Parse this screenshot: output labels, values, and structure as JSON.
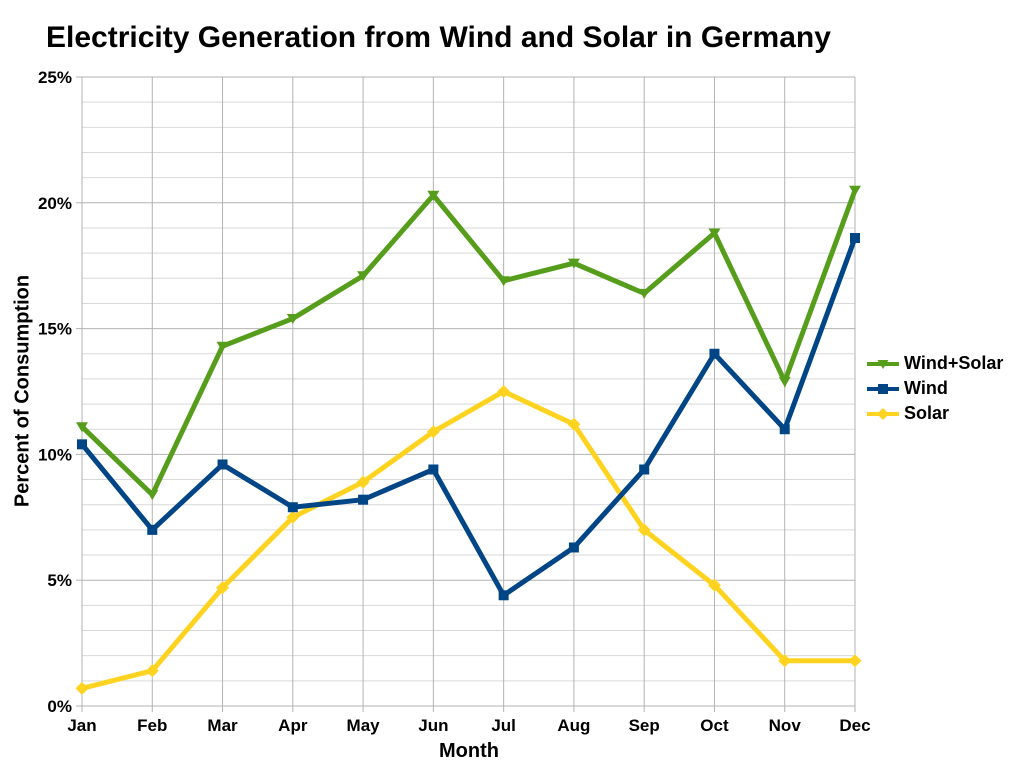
{
  "title": "Electricity Generation from Wind and Solar in Germany",
  "chart_data": {
    "type": "line",
    "title": "Electricity Generation from Wind and Solar in Germany",
    "xlabel": "Month",
    "ylabel": "Percent of Consumption",
    "categories": [
      "Jan",
      "Feb",
      "Mar",
      "Apr",
      "May",
      "Jun",
      "Jul",
      "Aug",
      "Sep",
      "Oct",
      "Nov",
      "Dec"
    ],
    "y_tick_labels": [
      "0%",
      "5%",
      "10%",
      "15%",
      "20%",
      "25%"
    ],
    "ylim": [
      0,
      25
    ],
    "y_major_step": 5,
    "y_minor_step": 1,
    "grid": true,
    "legend_position": "right",
    "series": [
      {
        "name": "Wind+Solar",
        "marker": "triangle-down",
        "color": "#579d1c",
        "values": [
          11.1,
          8.4,
          14.3,
          15.4,
          17.1,
          20.3,
          16.9,
          17.6,
          16.4,
          18.8,
          12.9,
          20.5
        ]
      },
      {
        "name": "Wind",
        "marker": "square",
        "color": "#004586",
        "values": [
          10.4,
          7.0,
          9.6,
          7.9,
          8.2,
          9.4,
          4.4,
          6.3,
          9.4,
          14.0,
          11.0,
          18.6
        ]
      },
      {
        "name": "Solar",
        "marker": "diamond",
        "color": "#ffd320",
        "values": [
          0.7,
          1.4,
          4.7,
          7.5,
          8.9,
          10.9,
          12.5,
          11.2,
          7.0,
          4.8,
          1.8,
          1.8
        ]
      }
    ],
    "colors": {
      "grid_minor": "#d9d9d9",
      "grid_major": "#b3b3b3",
      "axis": "#b3b3b3",
      "text": "#000000",
      "background": "#ffffff"
    }
  }
}
